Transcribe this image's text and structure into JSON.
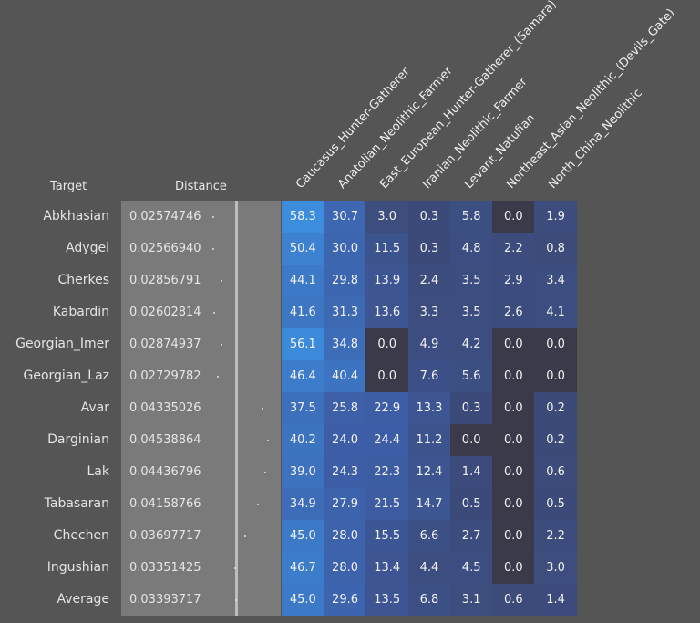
{
  "headers": {
    "target": "Target",
    "distance": "Distance"
  },
  "chart_data": {
    "type": "heatmap",
    "columns": [
      "Caucasus_Hunter-Gatherer",
      "Anatolian_Neolithic_Farmer",
      "East_European_Hunter-Gatherer_(Samara)",
      "Iranian_Neolithic_Farmer",
      "Levant_Natufian",
      "Northeast_Asian_Neolithic_(Devils_Gate)",
      "North_China_Neolithic"
    ],
    "rows": [
      {
        "target": "Abkhasian",
        "distance": "0.02574746",
        "distance_value": 0.02574746,
        "values": [
          "58.3",
          "30.7",
          "3.0",
          "0.3",
          "5.8",
          "0.0",
          "1.9"
        ]
      },
      {
        "target": "Adygei",
        "distance": "0.02566940",
        "distance_value": 0.0256694,
        "values": [
          "50.4",
          "30.0",
          "11.5",
          "0.3",
          "4.8",
          "2.2",
          "0.8"
        ]
      },
      {
        "target": "Cherkes",
        "distance": "0.02856791",
        "distance_value": 0.02856791,
        "values": [
          "44.1",
          "29.8",
          "13.9",
          "2.4",
          "3.5",
          "2.9",
          "3.4"
        ]
      },
      {
        "target": "Kabardin",
        "distance": "0.02602814",
        "distance_value": 0.02602814,
        "values": [
          "41.6",
          "31.3",
          "13.6",
          "3.3",
          "3.5",
          "2.6",
          "4.1"
        ]
      },
      {
        "target": "Georgian_Imer",
        "distance": "0.02874937",
        "distance_value": 0.02874937,
        "values": [
          "56.1",
          "34.8",
          "0.0",
          "4.9",
          "4.2",
          "0.0",
          "0.0"
        ]
      },
      {
        "target": "Georgian_Laz",
        "distance": "0.02729782",
        "distance_value": 0.02729782,
        "values": [
          "46.4",
          "40.4",
          "0.0",
          "7.6",
          "5.6",
          "0.0",
          "0.0"
        ]
      },
      {
        "target": "Avar",
        "distance": "0.04335026",
        "distance_value": 0.04335026,
        "values": [
          "37.5",
          "25.8",
          "22.9",
          "13.3",
          "0.3",
          "0.0",
          "0.2"
        ]
      },
      {
        "target": "Darginian",
        "distance": "0.04538864",
        "distance_value": 0.04538864,
        "values": [
          "40.2",
          "24.0",
          "24.4",
          "11.2",
          "0.0",
          "0.0",
          "0.2"
        ]
      },
      {
        "target": "Lak",
        "distance": "0.04436796",
        "distance_value": 0.04436796,
        "values": [
          "39.0",
          "24.3",
          "22.3",
          "12.4",
          "1.4",
          "0.0",
          "0.6"
        ]
      },
      {
        "target": "Tabasaran",
        "distance": "0.04158766",
        "distance_value": 0.04158766,
        "values": [
          "34.9",
          "27.9",
          "21.5",
          "14.7",
          "0.5",
          "0.0",
          "0.5"
        ]
      },
      {
        "target": "Chechen",
        "distance": "0.03697717",
        "distance_value": 0.03697717,
        "values": [
          "45.0",
          "28.0",
          "15.5",
          "6.6",
          "2.7",
          "0.0",
          "2.2"
        ]
      },
      {
        "target": "Ingushian",
        "distance": "0.03351425",
        "distance_value": 0.03351425,
        "values": [
          "46.7",
          "28.0",
          "13.4",
          "4.4",
          "4.5",
          "0.0",
          "3.0"
        ]
      },
      {
        "target": "Average",
        "distance": "0.03393717",
        "distance_value": 0.03393717,
        "values": [
          "45.0",
          "29.6",
          "13.5",
          "6.8",
          "3.1",
          "0.6",
          "1.4"
        ]
      }
    ],
    "color_scale": {
      "zero": "#3a3a4a",
      "low": "#3c4a78",
      "mid": "#3d5fa8",
      "high": "#3c8fe0"
    }
  }
}
